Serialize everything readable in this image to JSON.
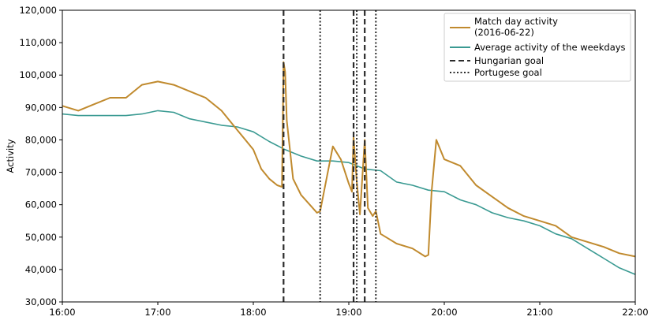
{
  "chart_data": {
    "type": "line",
    "title": "",
    "xlabel": "",
    "ylabel": "Activity",
    "xlim": [
      "16:00",
      "22:00"
    ],
    "ylim": [
      30000,
      120000
    ],
    "x_ticks": [
      "16:00",
      "17:00",
      "18:00",
      "19:00",
      "20:00",
      "21:00",
      "22:00"
    ],
    "y_ticks": [
      "30,000",
      "40,000",
      "50,000",
      "60,000",
      "70,000",
      "80,000",
      "90,000",
      "100,000",
      "110,000",
      "120,000"
    ],
    "y_tick_values": [
      30000,
      40000,
      50000,
      60000,
      70000,
      80000,
      90000,
      100000,
      110000,
      120000
    ],
    "grid": false,
    "legend_position": "top-right",
    "legend": {
      "match_line1": "Match day activity",
      "match_line2": "(2016-06-22)",
      "average": "Average activity of the weekdays",
      "hungarian": "Hungarian goal",
      "portuguese": "Portugese goal"
    },
    "colors": {
      "match": "#c08a2e",
      "average": "#3a9a92",
      "goal": "#2b2b2b"
    },
    "series": [
      {
        "name": "Match day activity (2016-06-22)",
        "x": [
          "16:00",
          "16:10",
          "16:20",
          "16:30",
          "16:40",
          "16:50",
          "17:00",
          "17:10",
          "17:20",
          "17:30",
          "17:40",
          "17:50",
          "17:55",
          "18:00",
          "18:05",
          "18:10",
          "18:15",
          "18:18",
          "18:19",
          "18:20",
          "18:21",
          "18:25",
          "18:30",
          "18:40",
          "18:42",
          "18:50",
          "18:55",
          "19:00",
          "19:02",
          "19:03",
          "19:05",
          "19:07",
          "19:10",
          "19:12",
          "19:15",
          "19:17",
          "19:20",
          "19:25",
          "19:30",
          "19:40",
          "19:48",
          "19:50",
          "19:52",
          "19:55",
          "20:00",
          "20:05",
          "20:10",
          "20:20",
          "20:30",
          "20:40",
          "20:50",
          "21:00",
          "21:10",
          "21:20",
          "21:30",
          "21:40",
          "21:50",
          "22:00"
        ],
        "y": [
          90500,
          89000,
          91000,
          93000,
          93000,
          97000,
          98000,
          97000,
          95000,
          93000,
          89000,
          83000,
          80000,
          77000,
          71000,
          68000,
          66000,
          65500,
          104000,
          101000,
          86000,
          68000,
          63000,
          57500,
          58000,
          78000,
          74000,
          66500,
          64000,
          81000,
          67000,
          57000,
          80000,
          59000,
          56500,
          58000,
          51000,
          49500,
          48000,
          46500,
          44000,
          44500,
          64000,
          80000,
          74000,
          73000,
          72000,
          66000,
          62500,
          59000,
          56500,
          55000,
          53500,
          50000,
          48500,
          47000,
          45000,
          44000
        ]
      },
      {
        "name": "Average activity of the weekdays",
        "x": [
          "16:00",
          "16:10",
          "16:20",
          "16:30",
          "16:40",
          "16:50",
          "17:00",
          "17:10",
          "17:20",
          "17:30",
          "17:40",
          "17:50",
          "18:00",
          "18:10",
          "18:20",
          "18:30",
          "18:40",
          "18:50",
          "19:00",
          "19:10",
          "19:20",
          "19:30",
          "19:40",
          "19:50",
          "20:00",
          "20:10",
          "20:20",
          "20:30",
          "20:40",
          "20:50",
          "21:00",
          "21:10",
          "21:20",
          "21:30",
          "21:40",
          "21:50",
          "22:00"
        ],
        "y": [
          88000,
          87500,
          87500,
          87500,
          87500,
          88000,
          89000,
          88500,
          86500,
          85500,
          84500,
          84000,
          82500,
          79500,
          77000,
          75000,
          73500,
          73500,
          73000,
          71000,
          70500,
          67000,
          66000,
          64500,
          64000,
          61500,
          60000,
          57500,
          56000,
          55000,
          53500,
          51000,
          49500,
          46500,
          43500,
          40500,
          38500
        ]
      }
    ],
    "hungarian_goals": [
      "18:19",
      "19:03",
      "19:10"
    ],
    "portuguese_goals": [
      "18:42",
      "19:05",
      "19:17"
    ]
  }
}
